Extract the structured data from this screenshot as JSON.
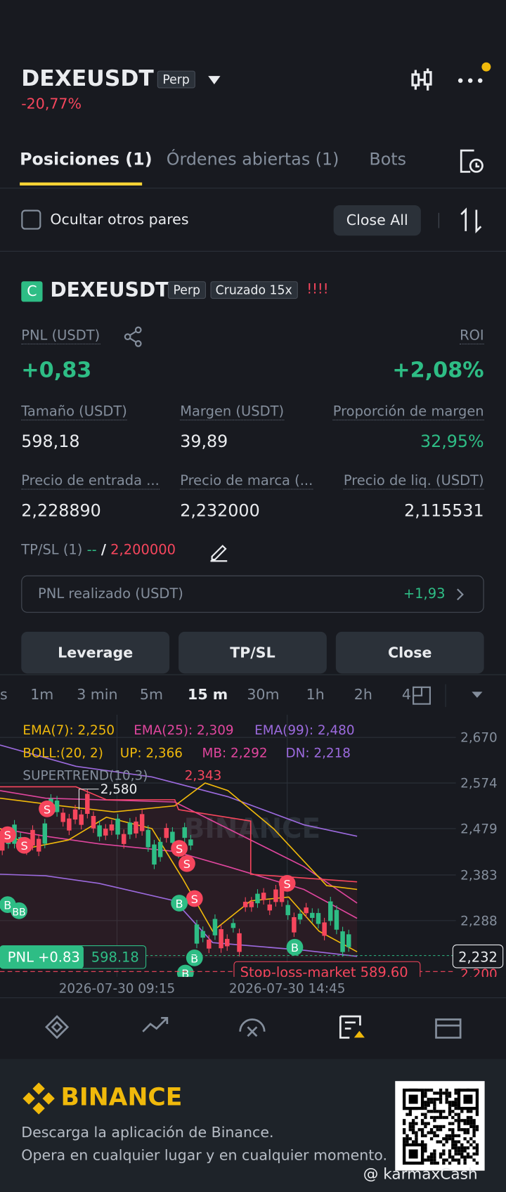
{
  "header": {
    "symbol": "DEXEUSDT",
    "badge": "Perp",
    "change": "-20,77%"
  },
  "tabs": [
    "Posiciones (1)",
    "Órdenes abiertas (1)",
    "Bots"
  ],
  "filter": {
    "label": "Ocultar otros pares",
    "button": "Close All"
  },
  "position": {
    "icon": "C",
    "symbol": "DEXEUSDT",
    "badges": [
      "Perp",
      "Cruzado 15x"
    ],
    "warning": "!!!!",
    "pnl_label": "PNL (USDT)",
    "pnl": "+0,83",
    "roi_label": "ROI",
    "roi": "+2,08%",
    "fields": [
      {
        "label": "Tamaño (USDT)",
        "value": "598,18"
      },
      {
        "label": "Margen (USDT)",
        "value": "39,89"
      },
      {
        "label": "Proporción de margen",
        "value": "32,95%"
      },
      {
        "label": "Precio de entrada ...",
        "value": "2,228890"
      },
      {
        "label": "Precio de marca (...",
        "value": "2,232000"
      },
      {
        "label": "Precio de liq. (USDT)",
        "value": "2,115531"
      }
    ],
    "tpsl": {
      "label": "TP/SL (1)",
      "tp": "--",
      "separator": "/",
      "sl": "2,200000"
    },
    "realized": {
      "label": "PNL realizado (USDT)",
      "value": "+1,93"
    },
    "buttons": [
      "Leverage",
      "TP/SL",
      "Close"
    ]
  },
  "chart": {
    "timeframes": [
      "s",
      "1m",
      "3 min",
      "5m",
      "15 m",
      "30m",
      "1h",
      "2h",
      "4"
    ],
    "indicators": [
      [
        "EMA(7): 2,250",
        "EMA(25): 2,309",
        "EMA(99): 2,480"
      ],
      [
        "BOLL:(20, 2)",
        "UP: 2,366",
        "MB: 2,292",
        "DN: 2,218"
      ],
      [
        "SUPERTREND(10,3)",
        "2,343"
      ]
    ],
    "watermark": "BINANCE",
    "high_label": "2,580",
    "price_labels": [
      "2,670",
      "2,574",
      "2,479",
      "2,383",
      "2,288"
    ],
    "current_price": "2,232",
    "cut_price": "2,200",
    "pnl_tag": "PNL +0.83",
    "size_tag": "598.18",
    "stop_loss": "Stop-loss-market 589,60",
    "dates": [
      "2026-07-30 09:15",
      "2026-07-30 14:45"
    ],
    "markers": [
      "S",
      "S",
      "S",
      "S",
      "S",
      "S",
      "S",
      "B",
      "BB",
      "B",
      "B",
      "B",
      "B"
    ]
  },
  "footer": {
    "brand": "BINANCE",
    "lines": [
      "Descarga la aplicación de Binance.",
      "Opera en cualquier lugar y en cualquier momento."
    ],
    "watermark": "@ karmaxCash"
  }
}
